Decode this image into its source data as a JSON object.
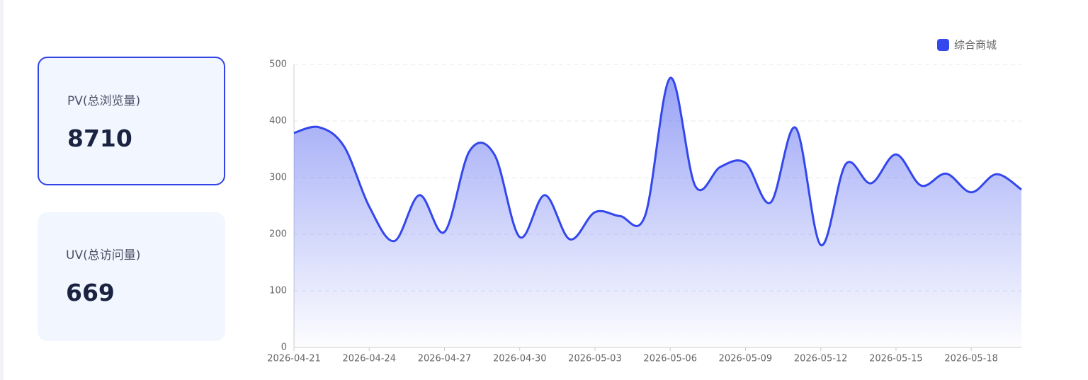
{
  "cards": [
    {
      "label": "PV(总浏览量)",
      "value": 8710
    },
    {
      "label": "UV(总访问量)",
      "value": 669
    }
  ],
  "chart_data": {
    "type": "line",
    "area": true,
    "categories": [
      "2026-04-21",
      null,
      null,
      "2026-04-24",
      null,
      null,
      "2026-04-27",
      null,
      null,
      "2026-04-30",
      null,
      null,
      "2026-05-03",
      null,
      null,
      "2026-05-06",
      null,
      null,
      "2026-05-09",
      null,
      null,
      "2026-05-12",
      null,
      null,
      "2026-05-15",
      null,
      null,
      "2026-05-18",
      null,
      null
    ],
    "series": [
      {
        "name": "综合商城",
        "color": "#3347ec",
        "values": [
          379,
          389,
          355,
          249,
          188,
          269,
          204,
          347,
          340,
          195,
          269,
          191,
          239,
          232,
          233,
          476,
          285,
          319,
          326,
          256,
          388,
          181,
          324,
          290,
          341,
          286,
          307,
          274,
          306,
          279
        ]
      }
    ],
    "ylim": [
      0,
      500
    ],
    "yticks": [
      0,
      100,
      200,
      300,
      400,
      500
    ],
    "grid": true,
    "legend": "top-right"
  }
}
